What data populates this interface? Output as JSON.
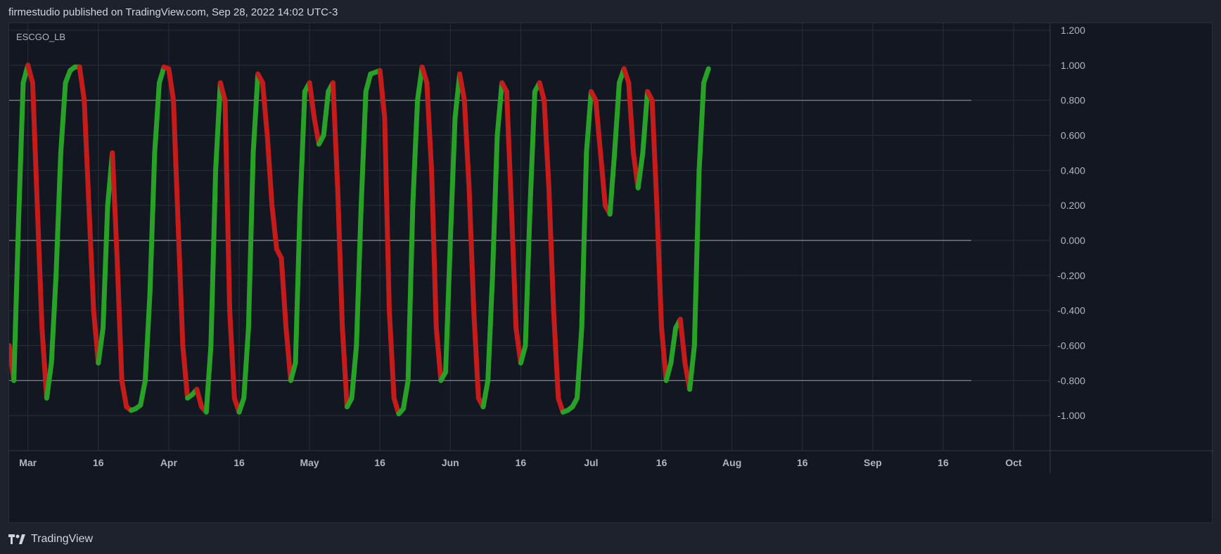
{
  "header": {
    "published": "firmestudio published on TradingView.com, Sep 28, 2022 14:02 UTC-3"
  },
  "footer": {
    "brand": "TradingView",
    "logo_icon": "tradingview-logo-icon"
  },
  "colors": {
    "background": "#131722",
    "frame": "#1e222d",
    "grid": "#2a2e39",
    "up": "#27a227",
    "down": "#c41b1b",
    "level_line": "#8a8d95",
    "text": "#b2b5be"
  },
  "chart_data": {
    "type": "line",
    "title": "",
    "symbol": "ESCGO_LB",
    "ylim": [
      -1.2,
      1.2
    ],
    "ytick_labels": [
      "1.200",
      "1.000",
      "0.800",
      "0.600",
      "0.400",
      "0.200",
      "0.000",
      "-0.200",
      "-0.400",
      "-0.600",
      "-0.800",
      "-1.000"
    ],
    "yticks": [
      1.2,
      1.0,
      0.8,
      0.6,
      0.4,
      0.2,
      0.0,
      -0.2,
      -0.4,
      -0.6,
      -0.8,
      -1.0
    ],
    "level_lines": [
      0.8,
      0.0,
      -0.8
    ],
    "xlim": [
      0,
      205
    ],
    "xtick_labels": [
      "Mar",
      "16",
      "Apr",
      "16",
      "May",
      "16",
      "Jun",
      "16",
      "Jul",
      "16",
      "Aug",
      "16",
      "Sep",
      "16",
      "Oct"
    ],
    "xticks": [
      4,
      19,
      34,
      49,
      64,
      79,
      94,
      109,
      124,
      139,
      154,
      169,
      184,
      199,
      214
    ],
    "grid": true,
    "series": [
      {
        "values": [
          -0.6,
          -0.8,
          0.1,
          0.9,
          1.0,
          0.9,
          0.2,
          -0.5,
          -0.9,
          -0.7,
          -0.2,
          0.5,
          0.9,
          0.97,
          0.99,
          0.99,
          0.8,
          0.2,
          -0.4,
          -0.7,
          -0.5,
          0.2,
          0.5,
          -0.1,
          -0.8,
          -0.95,
          -0.97,
          -0.96,
          -0.94,
          -0.8,
          -0.3,
          0.5,
          0.9,
          0.99,
          0.98,
          0.8,
          0.1,
          -0.6,
          -0.9,
          -0.88,
          -0.85,
          -0.95,
          -0.98,
          -0.6,
          0.4,
          0.9,
          0.8,
          -0.4,
          -0.9,
          -0.98,
          -0.9,
          -0.5,
          0.5,
          0.95,
          0.9,
          0.6,
          0.2,
          -0.05,
          -0.1,
          -0.5,
          -0.8,
          -0.7,
          0.2,
          0.85,
          0.9,
          0.7,
          0.55,
          0.6,
          0.85,
          0.9,
          0.3,
          -0.5,
          -0.95,
          -0.9,
          -0.6,
          0.2,
          0.85,
          0.95,
          0.96,
          0.97,
          0.7,
          -0.4,
          -0.9,
          -0.99,
          -0.96,
          -0.8,
          0.2,
          0.8,
          0.99,
          0.9,
          0.4,
          -0.5,
          -0.8,
          -0.75,
          0.0,
          0.7,
          0.95,
          0.8,
          0.3,
          -0.4,
          -0.9,
          -0.95,
          -0.8,
          -0.2,
          0.6,
          0.9,
          0.85,
          0.2,
          -0.5,
          -0.7,
          -0.6,
          0.2,
          0.85,
          0.9,
          0.8,
          0.3,
          -0.4,
          -0.9,
          -0.98,
          -0.97,
          -0.95,
          -0.9,
          -0.5,
          0.5,
          0.85,
          0.8,
          0.5,
          0.2,
          0.15,
          0.5,
          0.9,
          0.98,
          0.9,
          0.5,
          0.3,
          0.5,
          0.85,
          0.8,
          0.2,
          -0.5,
          -0.8,
          -0.7,
          -0.5,
          -0.45,
          -0.7,
          -0.85,
          -0.6,
          0.4,
          0.9,
          0.98
        ]
      }
    ]
  }
}
